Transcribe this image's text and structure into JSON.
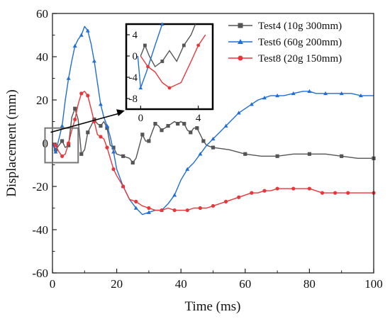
{
  "chart_data": {
    "type": "line",
    "xlabel": "Time (ms)",
    "ylabel": "Displacement (mm)",
    "xlim": [
      0,
      100
    ],
    "ylim": [
      -60,
      60
    ],
    "xticks": [
      0,
      20,
      40,
      60,
      80,
      100
    ],
    "yticks": [
      -60,
      -40,
      -20,
      0,
      20,
      40,
      60
    ],
    "xtick_labels": [
      "0",
      "20",
      "40",
      "60",
      "80",
      "100"
    ],
    "ytick_labels": [
      "-60",
      "-40",
      "-20",
      "0",
      "20",
      "40",
      "60"
    ],
    "legend_position": "top-right",
    "grid": false,
    "series": [
      {
        "name": "Test4 (10g 300mm)",
        "color": "#555555",
        "marker": "square",
        "points": [
          [
            0,
            0
          ],
          [
            1,
            -3
          ],
          [
            2,
            -1
          ],
          [
            3,
            1
          ],
          [
            4,
            -2
          ],
          [
            5,
            -1
          ],
          [
            6,
            12
          ],
          [
            7,
            16
          ],
          [
            8,
            11
          ],
          [
            9,
            -5
          ],
          [
            10,
            -3
          ],
          [
            11,
            5
          ],
          [
            12,
            8
          ],
          [
            13,
            11
          ],
          [
            14,
            9
          ],
          [
            15,
            8
          ],
          [
            16,
            10
          ],
          [
            17,
            7
          ],
          [
            18,
            -1
          ],
          [
            19,
            -2
          ],
          [
            20,
            -5
          ],
          [
            22,
            -6
          ],
          [
            24,
            -7
          ],
          [
            25,
            -9
          ],
          [
            26,
            -7
          ],
          [
            28,
            4
          ],
          [
            29,
            1
          ],
          [
            30,
            1
          ],
          [
            31,
            5
          ],
          [
            32,
            9
          ],
          [
            33,
            8
          ],
          [
            34,
            6
          ],
          [
            35,
            7
          ],
          [
            36,
            8
          ],
          [
            38,
            10
          ],
          [
            39,
            9
          ],
          [
            40,
            10
          ],
          [
            41,
            9
          ],
          [
            42,
            6
          ],
          [
            43,
            5
          ],
          [
            44,
            7
          ],
          [
            45,
            7
          ],
          [
            46,
            4
          ],
          [
            47,
            1
          ],
          [
            48,
            -1
          ],
          [
            50,
            -2
          ],
          [
            55,
            -3
          ],
          [
            60,
            -5
          ],
          [
            65,
            -6
          ],
          [
            70,
            -6
          ],
          [
            75,
            -5
          ],
          [
            80,
            -5
          ],
          [
            85,
            -5
          ],
          [
            90,
            -6
          ],
          [
            95,
            -7
          ],
          [
            100,
            -7
          ]
        ]
      },
      {
        "name": "Test6 (60g 200mm)",
        "color": "#1f6fd6",
        "marker": "triangle",
        "points": [
          [
            0,
            0
          ],
          [
            1,
            -4
          ],
          [
            2,
            2
          ],
          [
            3,
            8
          ],
          [
            4,
            20
          ],
          [
            5,
            30
          ],
          [
            6,
            38
          ],
          [
            7,
            45
          ],
          [
            8,
            48
          ],
          [
            9,
            50
          ],
          [
            10,
            54
          ],
          [
            11,
            52
          ],
          [
            12,
            46
          ],
          [
            13,
            38
          ],
          [
            14,
            28
          ],
          [
            15,
            18
          ],
          [
            16,
            12
          ],
          [
            17,
            8
          ],
          [
            18,
            3
          ],
          [
            19,
            -4
          ],
          [
            20,
            -12
          ],
          [
            22,
            -20
          ],
          [
            24,
            -26
          ],
          [
            26,
            -30
          ],
          [
            28,
            -33
          ],
          [
            30,
            -32
          ],
          [
            32,
            -31
          ],
          [
            34,
            -31
          ],
          [
            36,
            -28
          ],
          [
            38,
            -24
          ],
          [
            40,
            -17
          ],
          [
            42,
            -12
          ],
          [
            44,
            -9
          ],
          [
            46,
            -5
          ],
          [
            48,
            -1
          ],
          [
            50,
            2
          ],
          [
            52,
            5
          ],
          [
            54,
            8
          ],
          [
            56,
            11
          ],
          [
            58,
            14
          ],
          [
            60,
            16
          ],
          [
            62,
            18
          ],
          [
            64,
            20
          ],
          [
            66,
            21
          ],
          [
            68,
            22
          ],
          [
            70,
            22
          ],
          [
            72,
            22
          ],
          [
            75,
            23
          ],
          [
            78,
            24
          ],
          [
            80,
            24
          ],
          [
            82,
            23
          ],
          [
            85,
            23
          ],
          [
            88,
            23
          ],
          [
            90,
            23
          ],
          [
            93,
            23
          ],
          [
            96,
            22
          ],
          [
            100,
            22
          ]
        ]
      },
      {
        "name": "Test8 (20g 150mm)",
        "color": "#e8363a",
        "marker": "circle",
        "points": [
          [
            0,
            0
          ],
          [
            1,
            -1
          ],
          [
            2,
            -4
          ],
          [
            3,
            -6
          ],
          [
            4,
            -5
          ],
          [
            5,
            0
          ],
          [
            6,
            6
          ],
          [
            7,
            11
          ],
          [
            8,
            18
          ],
          [
            9,
            23
          ],
          [
            10,
            24
          ],
          [
            11,
            22
          ],
          [
            12,
            16
          ],
          [
            13,
            10
          ],
          [
            14,
            4
          ],
          [
            15,
            3
          ],
          [
            16,
            2
          ],
          [
            17,
            -2
          ],
          [
            18,
            -7
          ],
          [
            19,
            -12
          ],
          [
            20,
            -15
          ],
          [
            22,
            -20
          ],
          [
            24,
            -26
          ],
          [
            26,
            -27
          ],
          [
            28,
            -29
          ],
          [
            30,
            -30
          ],
          [
            32,
            -31
          ],
          [
            34,
            -31
          ],
          [
            36,
            -30
          ],
          [
            38,
            -31
          ],
          [
            40,
            -31
          ],
          [
            42,
            -31
          ],
          [
            44,
            -30
          ],
          [
            46,
            -30
          ],
          [
            48,
            -30
          ],
          [
            50,
            -29
          ],
          [
            52,
            -28
          ],
          [
            54,
            -27
          ],
          [
            56,
            -26
          ],
          [
            58,
            -25
          ],
          [
            60,
            -24
          ],
          [
            62,
            -23
          ],
          [
            64,
            -23
          ],
          [
            66,
            -22
          ],
          [
            68,
            -22
          ],
          [
            70,
            -21
          ],
          [
            72,
            -21
          ],
          [
            75,
            -21
          ],
          [
            78,
            -21
          ],
          [
            80,
            -21
          ],
          [
            82,
            -22
          ],
          [
            84,
            -23
          ],
          [
            86,
            -23
          ],
          [
            88,
            -23
          ],
          [
            90,
            -23
          ],
          [
            92,
            -23
          ],
          [
            95,
            -23
          ],
          [
            100,
            -23
          ]
        ]
      }
    ],
    "inset": {
      "xlim": [
        -1,
        5
      ],
      "ylim": [
        -10,
        6
      ],
      "xticks": [
        0,
        4
      ],
      "yticks": [
        4,
        0,
        -4,
        -8
      ],
      "xtick_labels": [
        "0",
        "4"
      ],
      "ytick_labels": [
        "4",
        "0",
        "-4",
        "-8"
      ],
      "zoom_region": {
        "xlim": [
          -1,
          8
        ],
        "ylim": [
          -9,
          7
        ]
      },
      "series": [
        {
          "name": "Test4 (10g 300mm)",
          "color": "#555555",
          "marker": "square",
          "points": [
            [
              0,
              0
            ],
            [
              0.3,
              2
            ],
            [
              0.6,
              0
            ],
            [
              1,
              -2
            ],
            [
              1.5,
              -1
            ],
            [
              2,
              1
            ],
            [
              2.5,
              -1
            ],
            [
              3,
              2
            ],
            [
              3.5,
              4
            ],
            [
              3.8,
              6
            ]
          ]
        },
        {
          "name": "Test6 (60g 200mm)",
          "color": "#1f6fd6",
          "marker": "triangle",
          "points": [
            [
              -0.2,
              0
            ],
            [
              0,
              -6
            ],
            [
              0.4,
              -3
            ],
            [
              1,
              2
            ],
            [
              1.5,
              6
            ]
          ]
        },
        {
          "name": "Test8 (20g 150mm)",
          "color": "#e8363a",
          "marker": "circle",
          "points": [
            [
              0,
              0
            ],
            [
              0.5,
              -2
            ],
            [
              1,
              -3
            ],
            [
              1.5,
              -5
            ],
            [
              2,
              -6
            ],
            [
              2.8,
              -5
            ],
            [
              3.5,
              -1
            ],
            [
              4,
              2
            ],
            [
              4.5,
              4
            ]
          ]
        }
      ]
    }
  }
}
